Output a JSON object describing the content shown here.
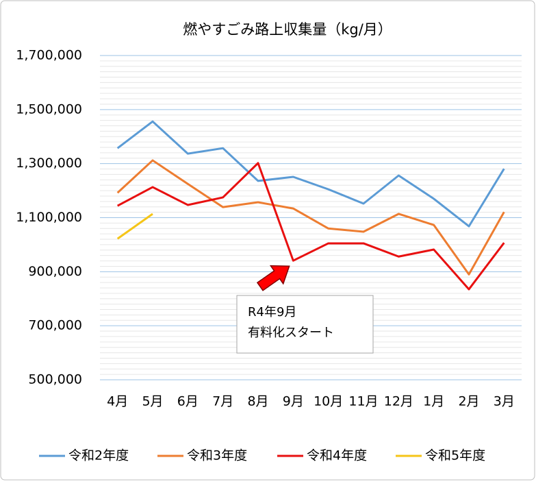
{
  "chart_data": {
    "type": "line",
    "title": "燃やすごみ路上収集量（kg/月）",
    "categories": [
      "4月",
      "5月",
      "6月",
      "7月",
      "8月",
      "9月",
      "10月",
      "11月",
      "12月",
      "1月",
      "2月",
      "3月"
    ],
    "series": [
      {
        "name": "令和2年度",
        "color": "#5b9bd5",
        "values": [
          1357000,
          1456000,
          1337000,
          1357000,
          1236000,
          1251000,
          1205000,
          1152000,
          1256000,
          1170000,
          1068000,
          1281000
        ]
      },
      {
        "name": "令和3年度",
        "color": "#ed7d31",
        "values": [
          1192000,
          1312000,
          1225000,
          1139000,
          1157000,
          1134000,
          1060000,
          1048000,
          1114000,
          1073000,
          890000,
          1121000
        ]
      },
      {
        "name": "令和4年度",
        "color": "#e81010",
        "values": [
          1144000,
          1213000,
          1147000,
          1175000,
          1302000,
          941000,
          1005000,
          1005000,
          956000,
          982000,
          835000,
          1007000
        ]
      },
      {
        "name": "令和5年度",
        "color": "#f5c518",
        "values": [
          1022000,
          1114000,
          null,
          null,
          null,
          null,
          null,
          null,
          null,
          null,
          null,
          null
        ]
      }
    ],
    "ylim": [
      500000,
      1700000
    ],
    "yticks": [
      {
        "value": 500000,
        "label": "500,000"
      },
      {
        "value": 700000,
        "label": "700,000"
      },
      {
        "value": 900000,
        "label": "900,000"
      },
      {
        "value": 1100000,
        "label": "1,100,000"
      },
      {
        "value": 1300000,
        "label": "1,300,000"
      },
      {
        "value": 1500000,
        "label": "1,500,000"
      },
      {
        "value": 1700000,
        "label": "1,700,000"
      }
    ],
    "grid": true,
    "legend": "bottom",
    "annotations": [
      "R4年9月",
      "有料化スタート"
    ]
  }
}
